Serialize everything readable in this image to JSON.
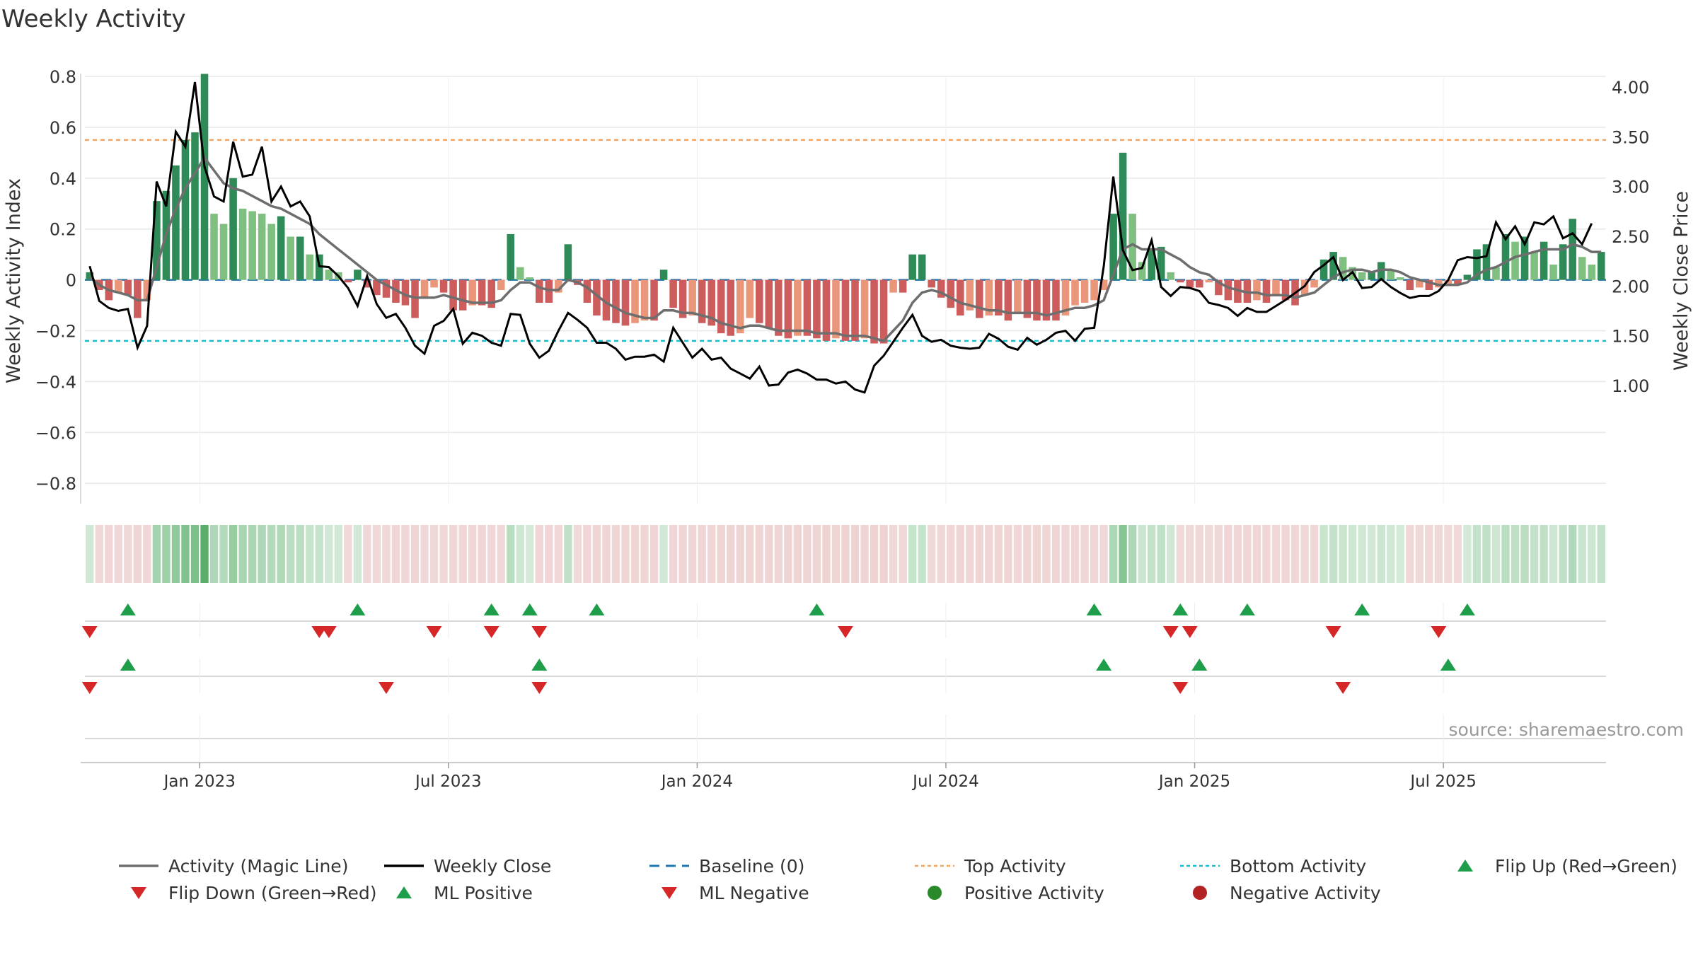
{
  "title": "Weekly Activity",
  "source": "source: sharemaestro.com",
  "colors": {
    "green_dark": "#2e8b57",
    "green_light": "#7fbf7f",
    "red_dark": "#cd5c5c",
    "red_light": "#e9967a",
    "magic_line": "#6e6e6e",
    "close_line": "#000000",
    "baseline": "#1f77b4",
    "top_line": "#f4a460",
    "bottom_line": "#17becf",
    "marker_up": "#1e9e4a",
    "marker_down": "#d62728",
    "grid": "#e8e8e8",
    "text": "#333333"
  },
  "chart_data": {
    "type": "bar",
    "title": "Weekly Activity",
    "ylabel_left": "Weekly Activity Index",
    "ylabel_right": "Weekly Close Price",
    "ylim_left": [
      -0.88,
      0.8
    ],
    "yticks_left": [
      0.8,
      0.6,
      0.4,
      0.2,
      0,
      -0.2,
      -0.4,
      -0.6,
      -0.8
    ],
    "ytick_labels_left": [
      "0.8",
      "0.6",
      "0.4",
      "0.2",
      "0",
      "−0.2",
      "−0.4",
      "−0.6",
      "−0.8"
    ],
    "yticks_right": [
      4.0,
      3.5,
      3.0,
      2.5,
      2.0,
      1.5,
      1.0
    ],
    "ytick_labels_right": [
      "4.00",
      "3.50",
      "3.00",
      "2.50",
      "2.00",
      "1.50",
      "1.00"
    ],
    "x_start": "2022-10-10",
    "x_end": "2025-09-22",
    "x_ticks": [
      "Jan 2023",
      "Jul 2023",
      "Jan 2024",
      "Jul 2024",
      "Jan 2025",
      "Jul 2025"
    ],
    "x_tick_positions_week": [
      12,
      38,
      64,
      90,
      116,
      142
    ],
    "top_activity": 0.55,
    "bottom_activity": -0.24,
    "baseline": 0,
    "activity": [
      0.03,
      -0.04,
      -0.08,
      -0.05,
      -0.06,
      -0.15,
      -0.08,
      0.31,
      0.35,
      0.45,
      0.55,
      0.58,
      0.81,
      0.26,
      0.22,
      0.4,
      0.28,
      0.27,
      0.26,
      0.22,
      0.25,
      0.17,
      0.17,
      0.1,
      0.1,
      0.04,
      0.03,
      -0.01,
      0.04,
      -0.03,
      -0.06,
      -0.07,
      -0.09,
      -0.1,
      -0.15,
      -0.07,
      -0.03,
      -0.05,
      -0.12,
      -0.12,
      -0.1,
      -0.1,
      -0.11,
      -0.04,
      0.18,
      0.05,
      0.01,
      -0.09,
      -0.09,
      -0.05,
      0.14,
      -0.02,
      -0.09,
      -0.14,
      -0.16,
      -0.17,
      -0.18,
      -0.17,
      -0.16,
      -0.16,
      0.04,
      -0.11,
      -0.15,
      -0.14,
      -0.17,
      -0.18,
      -0.21,
      -0.22,
      -0.21,
      -0.15,
      -0.17,
      -0.19,
      -0.22,
      -0.23,
      -0.22,
      -0.22,
      -0.23,
      -0.24,
      -0.23,
      -0.24,
      -0.24,
      -0.23,
      -0.25,
      -0.25,
      -0.05,
      -0.05,
      0.1,
      0.1,
      -0.03,
      -0.07,
      -0.11,
      -0.14,
      -0.12,
      -0.15,
      -0.14,
      -0.14,
      -0.16,
      -0.13,
      -0.15,
      -0.16,
      -0.16,
      -0.16,
      -0.14,
      -0.1,
      -0.09,
      -0.08,
      -0.04,
      0.26,
      0.5,
      0.26,
      0.07,
      0.12,
      0.13,
      0.03,
      -0.01,
      -0.03,
      -0.03,
      -0.01,
      -0.06,
      -0.08,
      -0.09,
      -0.09,
      -0.08,
      -0.09,
      -0.06,
      -0.08,
      -0.1,
      -0.06,
      -0.03,
      0.08,
      0.11,
      0.09,
      0.05,
      0.03,
      0.03,
      0.07,
      0.04,
      0.01,
      -0.04,
      -0.03,
      -0.04,
      -0.03,
      -0.02,
      -0.02,
      0.02,
      0.12,
      0.14,
      0.05,
      0.18,
      0.15,
      0.17,
      0.11,
      0.15,
      0.06,
      0.14,
      0.24,
      0.09,
      0.06,
      0.11
    ],
    "magic_line": [
      0.01,
      -0.02,
      -0.04,
      -0.05,
      -0.06,
      -0.08,
      -0.08,
      0.05,
      0.18,
      0.28,
      0.36,
      0.42,
      0.48,
      0.43,
      0.38,
      0.36,
      0.35,
      0.33,
      0.31,
      0.29,
      0.28,
      0.26,
      0.24,
      0.22,
      0.18,
      0.15,
      0.12,
      0.09,
      0.06,
      0.03,
      0.0,
      -0.02,
      -0.04,
      -0.06,
      -0.07,
      -0.07,
      -0.07,
      -0.06,
      -0.07,
      -0.08,
      -0.09,
      -0.09,
      -0.09,
      -0.08,
      -0.04,
      -0.01,
      -0.01,
      -0.03,
      -0.04,
      -0.04,
      0.0,
      -0.01,
      -0.03,
      -0.06,
      -0.09,
      -0.11,
      -0.13,
      -0.14,
      -0.15,
      -0.15,
      -0.12,
      -0.12,
      -0.13,
      -0.13,
      -0.14,
      -0.15,
      -0.17,
      -0.18,
      -0.19,
      -0.18,
      -0.18,
      -0.19,
      -0.2,
      -0.2,
      -0.2,
      -0.2,
      -0.21,
      -0.21,
      -0.21,
      -0.22,
      -0.22,
      -0.22,
      -0.23,
      -0.24,
      -0.2,
      -0.16,
      -0.09,
      -0.05,
      -0.04,
      -0.05,
      -0.07,
      -0.09,
      -0.1,
      -0.11,
      -0.12,
      -0.12,
      -0.13,
      -0.13,
      -0.13,
      -0.13,
      -0.14,
      -0.13,
      -0.12,
      -0.11,
      -0.11,
      -0.1,
      -0.08,
      0.02,
      0.12,
      0.14,
      0.12,
      0.12,
      0.12,
      0.1,
      0.08,
      0.05,
      0.03,
      0.02,
      -0.01,
      -0.03,
      -0.04,
      -0.05,
      -0.05,
      -0.06,
      -0.06,
      -0.06,
      -0.07,
      -0.06,
      -0.05,
      -0.02,
      0.01,
      0.03,
      0.04,
      0.04,
      0.03,
      0.04,
      0.04,
      0.03,
      0.01,
      0.0,
      -0.01,
      -0.02,
      -0.02,
      -0.02,
      -0.01,
      0.02,
      0.04,
      0.05,
      0.07,
      0.09,
      0.1,
      0.11,
      0.12,
      0.12,
      0.12,
      0.14,
      0.13,
      0.11,
      0.11
    ],
    "weekly_close": [
      2.2,
      1.85,
      1.78,
      1.75,
      1.77,
      1.38,
      1.6,
      3.05,
      2.8,
      3.55,
      3.4,
      4.05,
      3.2,
      2.9,
      2.85,
      3.45,
      3.1,
      3.12,
      3.4,
      2.85,
      3.0,
      2.8,
      2.85,
      2.7,
      2.2,
      2.19,
      2.1,
      1.98,
      1.8,
      2.1,
      1.82,
      1.68,
      1.72,
      1.58,
      1.4,
      1.32,
      1.6,
      1.65,
      1.77,
      1.42,
      1.53,
      1.5,
      1.43,
      1.4,
      1.72,
      1.71,
      1.42,
      1.28,
      1.35,
      1.55,
      1.73,
      1.66,
      1.58,
      1.43,
      1.43,
      1.37,
      1.26,
      1.29,
      1.29,
      1.31,
      1.24,
      1.58,
      1.43,
      1.28,
      1.37,
      1.26,
      1.28,
      1.17,
      1.12,
      1.07,
      1.19,
      1.0,
      1.01,
      1.13,
      1.16,
      1.12,
      1.06,
      1.06,
      1.02,
      1.04,
      0.96,
      0.93,
      1.2,
      1.3,
      1.44,
      1.58,
      1.71,
      1.5,
      1.44,
      1.46,
      1.4,
      1.38,
      1.37,
      1.38,
      1.52,
      1.47,
      1.39,
      1.36,
      1.48,
      1.41,
      1.46,
      1.53,
      1.55,
      1.45,
      1.57,
      1.58,
      2.2,
      3.1,
      2.36,
      2.16,
      2.18,
      2.46,
      1.99,
      1.9,
      1.99,
      1.98,
      1.95,
      1.83,
      1.81,
      1.78,
      1.7,
      1.78,
      1.74,
      1.74,
      1.8,
      1.86,
      1.93,
      2.0,
      2.14,
      2.21,
      2.29,
      2.06,
      2.14,
      1.98,
      1.99,
      2.07,
      1.99,
      1.93,
      1.88,
      1.9,
      1.9,
      1.95,
      2.06,
      2.26,
      2.29,
      2.28,
      2.3,
      2.64,
      2.47,
      2.6,
      2.42,
      2.64,
      2.62,
      2.7,
      2.48,
      2.53,
      2.42,
      2.63
    ],
    "strip_colors_note": "activity strip uses per-week fill derived from activity sign and magnitude",
    "flip_up_weeks": [
      4,
      28,
      42,
      46,
      53,
      76,
      105,
      114,
      121,
      133,
      144
    ],
    "flip_down_weeks": [
      0,
      24,
      25,
      36,
      42,
      47,
      79,
      113,
      115,
      130,
      141
    ],
    "ml_positive_weeks": [
      4,
      47,
      106,
      116,
      142
    ],
    "ml_negative_weeks": [
      0,
      31,
      47,
      114,
      131
    ],
    "legend": [
      "Activity (Magic Line)",
      "Weekly Close",
      "Baseline (0)",
      "Top Activity",
      "Bottom Activity",
      "Flip Up (Red→Green)",
      "Flip Down (Green→Red)",
      "ML Positive",
      "ML Negative",
      "Positive Activity",
      "Negative Activity"
    ]
  }
}
